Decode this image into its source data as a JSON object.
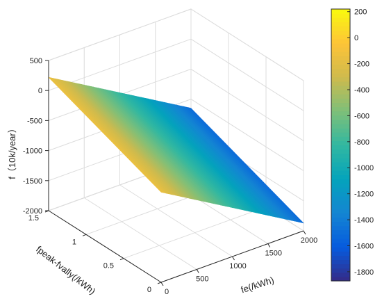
{
  "chart_data": {
    "type": "surface3d",
    "title": "",
    "xlabel": "fe(/kWh)",
    "ylabel": "fpeak-fvally(/kWh)",
    "zlabel": "f（10k/year）",
    "xlim": [
      0,
      2000
    ],
    "ylim": [
      0,
      1.5
    ],
    "zlim": [
      -2000,
      500
    ],
    "x_ticks": [
      "0",
      "500",
      "1000",
      "1500",
      "2000"
    ],
    "y_ticks": [
      "0",
      "0.5",
      "1",
      "1.5"
    ],
    "z_ticks": [
      "500",
      "0",
      "-500",
      "-1000",
      "-1500",
      "-2000"
    ],
    "surface": {
      "x": [
        0,
        2000
      ],
      "y": [
        0,
        1.5
      ],
      "z_corners": [
        {
          "x": 0,
          "y": 0,
          "z": -500
        },
        {
          "x": 2000,
          "y": 0,
          "z": -1870
        },
        {
          "x": 0,
          "y": 1.5,
          "z": 220
        },
        {
          "x": 2000,
          "y": 1.5,
          "z": -1150
        }
      ]
    },
    "colorbar": {
      "colormap": "parula",
      "range": [
        -1870,
        220
      ],
      "ticks": [
        "200",
        "0",
        "-200",
        "-400",
        "-600",
        "-800",
        "-1000",
        "-1200",
        "-1400",
        "-1600",
        "-1800"
      ]
    },
    "grid": true
  }
}
